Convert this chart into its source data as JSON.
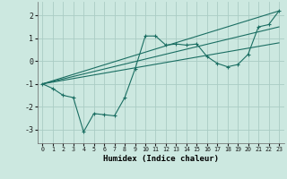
{
  "xlabel": "Humidex (Indice chaleur)",
  "xlim": [
    -0.5,
    23.5
  ],
  "ylim": [
    -3.6,
    2.6
  ],
  "yticks": [
    -3,
    -2,
    -1,
    0,
    1,
    2
  ],
  "xticks": [
    0,
    1,
    2,
    3,
    4,
    5,
    6,
    7,
    8,
    9,
    10,
    11,
    12,
    13,
    14,
    15,
    16,
    17,
    18,
    19,
    20,
    21,
    22,
    23
  ],
  "bg_color": "#cce8e0",
  "grid_color": "#aaccc4",
  "line_color": "#1a6e62",
  "lines": [
    {
      "x": [
        0,
        1,
        2,
        3,
        4,
        5,
        6,
        7,
        8,
        9,
        10,
        11,
        12,
        13,
        14,
        15,
        16,
        17,
        18,
        19,
        20,
        21,
        22,
        23
      ],
      "y": [
        -1.0,
        -1.2,
        -1.5,
        -1.6,
        -3.1,
        -2.3,
        -2.35,
        -2.4,
        -1.6,
        -0.35,
        1.1,
        1.1,
        0.7,
        0.75,
        0.7,
        0.75,
        0.2,
        -0.1,
        -0.25,
        -0.15,
        0.3,
        1.5,
        1.6,
        2.2
      ],
      "marker": true
    },
    {
      "x": [
        0,
        23
      ],
      "y": [
        -1.0,
        2.2
      ],
      "marker": false
    },
    {
      "x": [
        0,
        23
      ],
      "y": [
        -1.0,
        1.5
      ],
      "marker": false
    },
    {
      "x": [
        0,
        23
      ],
      "y": [
        -1.0,
        0.8
      ],
      "marker": false
    }
  ]
}
